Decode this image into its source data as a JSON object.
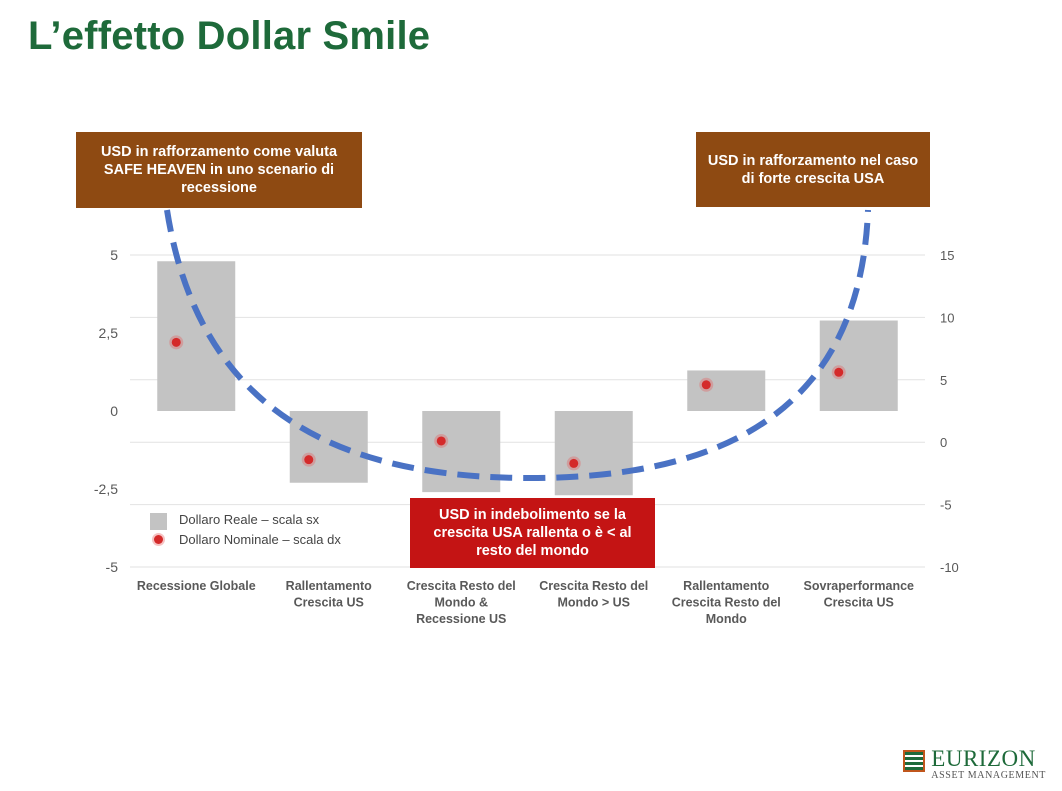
{
  "title": "L’effetto Dollar Smile",
  "chart_data": {
    "type": "bar",
    "categories": [
      "Recessione Globale",
      "Rallentamento Crescita US",
      "Crescita Resto del Mondo & Recessione US",
      "Crescita Resto del Mondo > US",
      "Rallentamento Crescita Resto del Mondo",
      "Sovraperformance Crescita US"
    ],
    "category_lines": [
      [
        "Recessione Globale"
      ],
      [
        "Rallentamento",
        "Crescita US"
      ],
      [
        "Crescita Resto del",
        "Mondo &",
        "Recessione US"
      ],
      [
        "Crescita Resto del",
        "Mondo > US"
      ],
      [
        "Rallentamento",
        "Crescita Resto del",
        "Mondo"
      ],
      [
        "Sovraperformance",
        "Crescita US"
      ]
    ],
    "series": [
      {
        "name": "Dollaro Reale – scala sx",
        "type": "bar",
        "axis": "left",
        "color": "#c3c3c3",
        "values": [
          4.8,
          -2.3,
          -2.6,
          -2.7,
          1.3,
          2.9
        ]
      },
      {
        "name": "Dollaro Nominale – scala dx",
        "type": "scatter",
        "axis": "right",
        "color": "#d42a2a",
        "values": [
          8.0,
          -1.4,
          0.1,
          -1.7,
          4.6,
          5.6
        ]
      }
    ],
    "y_left": {
      "ylim": [
        -5,
        5
      ],
      "ticks": [
        5,
        2.5,
        0,
        -2.5,
        -5
      ],
      "tick_labels": [
        "5",
        "2,5",
        "0",
        "-2,5",
        "-5"
      ]
    },
    "y_right": {
      "ylim": [
        -10,
        15
      ],
      "ticks": [
        15,
        10,
        5,
        0,
        -5,
        -10
      ],
      "tick_labels": [
        "15",
        "10",
        "5",
        "0",
        "-5",
        "-10"
      ]
    },
    "smile_curve": {
      "style": "dashed",
      "color": "#4a72c4"
    },
    "legend": [
      {
        "label": "Dollaro Reale – scala sx",
        "marker": "square"
      },
      {
        "label": "Dollaro Nominale – scala dx",
        "marker": "dot"
      }
    ],
    "annotations": [
      {
        "text": "USD in rafforzamento come valuta SAFE HEAVEN in uno scenario di recessione",
        "color": "#8e4a12"
      },
      {
        "text": "USD in rafforzamento nel caso di forte crescita USA",
        "color": "#8e4a12"
      },
      {
        "text": "USD in indebolimento se la crescita USA rallenta o è < al resto del mondo",
        "color": "#c41414"
      }
    ]
  },
  "logo": {
    "name": "EURIZON",
    "sub": "ASSET MANAGEMENT"
  }
}
